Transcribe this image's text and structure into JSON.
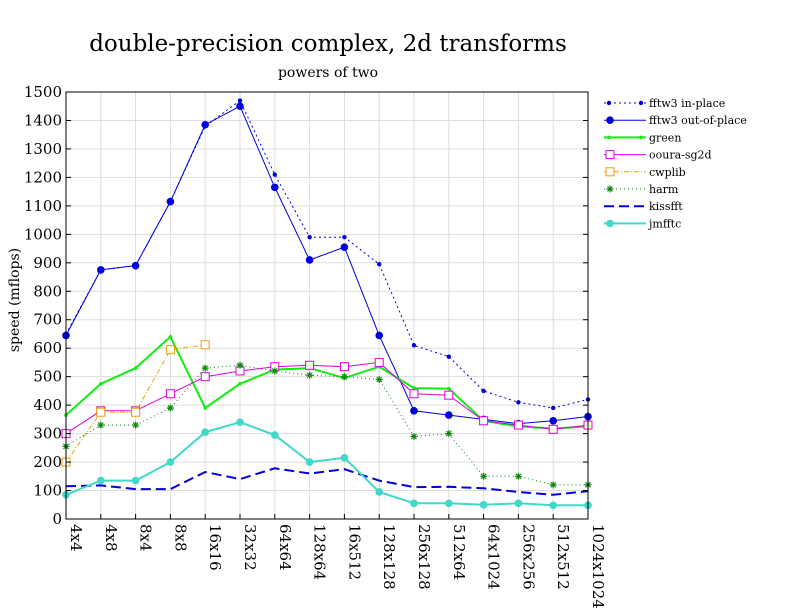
{
  "chart_data": {
    "type": "line",
    "title": "double-precision complex, 2d transforms",
    "subtitle": "powers of two",
    "ylabel": "speed (mflops)",
    "xlabel": "",
    "ylim": [
      0,
      1500
    ],
    "y_ticks": [
      0,
      100,
      200,
      300,
      400,
      500,
      600,
      700,
      800,
      900,
      1000,
      1100,
      1200,
      1300,
      1400,
      1500
    ],
    "grid": true,
    "legend_position": "right",
    "categories": [
      "4x4",
      "4x8",
      "8x4",
      "8x8",
      "16x16",
      "32x32",
      "64x64",
      "128x64",
      "16x512",
      "128x128",
      "256x128",
      "512x64",
      "64x1024",
      "256x256",
      "512x512",
      "1024x1024"
    ],
    "series": [
      {
        "name": "fftw3 in-place",
        "color": "#0000dd",
        "dash": "2,3",
        "width": 1,
        "marker": "dot",
        "values": [
          650,
          875,
          890,
          1115,
          1380,
          1470,
          1210,
          990,
          990,
          895,
          610,
          570,
          450,
          410,
          390,
          420
        ]
      },
      {
        "name": "fftw3 out-of-place",
        "color": "#0000dd",
        "dash": "",
        "width": 1,
        "marker": "circle",
        "values": [
          645,
          875,
          890,
          1115,
          1385,
          1450,
          1165,
          910,
          955,
          645,
          380,
          365,
          350,
          335,
          345,
          360
        ]
      },
      {
        "name": "green",
        "color": "#11ee11",
        "dash": "",
        "width": 2,
        "marker": "smalldot",
        "values": [
          365,
          475,
          530,
          640,
          390,
          475,
          525,
          530,
          495,
          535,
          460,
          458,
          345,
          325,
          318,
          325
        ]
      },
      {
        "name": "ooura-sg2d",
        "color": "#dd00dd",
        "dash": "",
        "width": 1,
        "marker": "square",
        "values": [
          300,
          380,
          380,
          440,
          500,
          520,
          535,
          540,
          535,
          550,
          440,
          435,
          345,
          330,
          315,
          330
        ]
      },
      {
        "name": "cwplib",
        "color": "#f0a000",
        "dash": "5,2,1,2",
        "width": 1,
        "marker": "square",
        "values": [
          200,
          375,
          375,
          595,
          612,
          null,
          null,
          null,
          null,
          null,
          null,
          null,
          null,
          null,
          null,
          null
        ]
      },
      {
        "name": "harm",
        "color": "#118811",
        "dash": "1,3",
        "width": 1,
        "marker": "star",
        "values": [
          255,
          330,
          330,
          390,
          530,
          540,
          520,
          505,
          500,
          490,
          290,
          300,
          150,
          150,
          120,
          120
        ]
      },
      {
        "name": "kissfft",
        "color": "#0000dd",
        "dash": "10,5",
        "width": 2,
        "marker": "none",
        "values": [
          115,
          118,
          105,
          105,
          165,
          140,
          178,
          160,
          175,
          135,
          112,
          113,
          108,
          95,
          85,
          98
        ]
      },
      {
        "name": "jmfftc",
        "color": "#40d8c8",
        "dash": "",
        "width": 2,
        "marker": "circle",
        "values": [
          85,
          135,
          135,
          200,
          305,
          340,
          295,
          200,
          215,
          95,
          55,
          55,
          50,
          55,
          48,
          48
        ]
      }
    ]
  }
}
